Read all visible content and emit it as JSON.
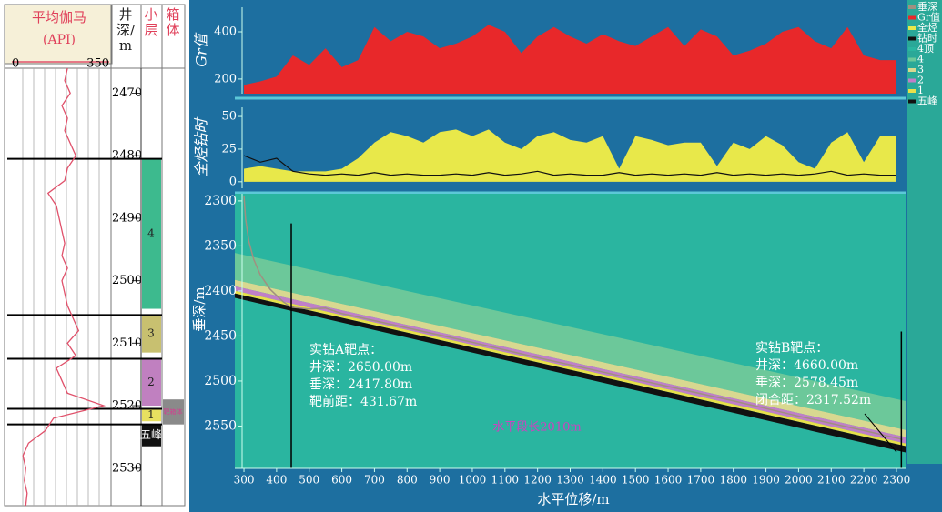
{
  "chart_data": [
    {
      "type": "well-log",
      "title": "平均伽马",
      "subtitle": "(API)",
      "depth_label": "井深/m",
      "layer_label": "小层",
      "box_label": "箱体",
      "xlim": [
        0,
        350
      ],
      "xticks": [
        0,
        350
      ],
      "ylim": [
        2466,
        2536
      ],
      "yticks": [
        2470,
        2480,
        2490,
        2500,
        2510,
        2520,
        2530
      ],
      "depth": [
        2466,
        2468,
        2470,
        2472,
        2474,
        2476,
        2478,
        2480,
        2482,
        2484,
        2486,
        2488,
        2490,
        2492,
        2494,
        2496,
        2498,
        2500,
        2502,
        2504,
        2506,
        2508,
        2510,
        2512,
        2514,
        2516,
        2518,
        2520,
        2522,
        2524,
        2526,
        2528,
        2530,
        2532,
        2534,
        2536
      ],
      "values": [
        200,
        190,
        210,
        180,
        200,
        190,
        210,
        230,
        200,
        190,
        130,
        160,
        170,
        180,
        190,
        180,
        200,
        180,
        190,
        200,
        220,
        240,
        200,
        230,
        160,
        180,
        200,
        330,
        150,
        120,
        60,
        40,
        50,
        45,
        55,
        50
      ],
      "color": "#e0506a",
      "layers": [
        {
          "name": "4",
          "color": "#3dba8e",
          "top": 2480.5,
          "bottom": 2504.5
        },
        {
          "name": "3",
          "color": "#c8c070",
          "top": 2505.5,
          "bottom": 2511.5
        },
        {
          "name": "2",
          "color": "#c080c0",
          "top": 2512.5,
          "bottom": 2520
        },
        {
          "name": "1",
          "color": "#e8e060",
          "top": 2520.5,
          "bottom": 2522.5
        },
        {
          "name": "五峰",
          "color": "#111111",
          "top": 2523,
          "bottom": 2526.5
        }
      ],
      "box": {
        "name": "靶箱体",
        "color": "#8a8a8a",
        "top": 2519,
        "bottom": 2523
      }
    },
    {
      "type": "area",
      "ylabel": "Gr值",
      "x": [
        300,
        350,
        400,
        450,
        500,
        550,
        600,
        650,
        700,
        750,
        800,
        850,
        900,
        950,
        1000,
        1050,
        1100,
        1150,
        1200,
        1250,
        1300,
        1350,
        1400,
        1450,
        1500,
        1550,
        1600,
        1650,
        1700,
        1750,
        1800,
        1850,
        1900,
        1950,
        2000,
        2050,
        2100,
        2150,
        2200,
        2250,
        2300
      ],
      "series": [
        {
          "name": "Gr值",
          "color": "#e8282a",
          "values": [
            175,
            190,
            210,
            300,
            260,
            330,
            250,
            280,
            420,
            360,
            400,
            380,
            330,
            350,
            380,
            430,
            400,
            310,
            380,
            420,
            380,
            350,
            390,
            360,
            340,
            380,
            420,
            340,
            410,
            380,
            300,
            320,
            350,
            400,
            420,
            360,
            330,
            420,
            300,
            280,
            280
          ]
        }
      ],
      "ylim": [
        138,
        504
      ],
      "yticks": [
        200,
        400
      ]
    },
    {
      "type": "area",
      "ylabel": "全烃钻时",
      "x": [
        300,
        350,
        400,
        450,
        500,
        550,
        600,
        650,
        700,
        750,
        800,
        850,
        900,
        950,
        1000,
        1050,
        1100,
        1150,
        1200,
        1250,
        1300,
        1350,
        1400,
        1450,
        1500,
        1550,
        1600,
        1650,
        1700,
        1750,
        1800,
        1850,
        1900,
        1950,
        2000,
        2050,
        2100,
        2150,
        2200,
        2250,
        2300
      ],
      "series": [
        {
          "name": "全烃",
          "color": "#e8e84a",
          "values": [
            10,
            12,
            10,
            8,
            8,
            8,
            10,
            18,
            30,
            38,
            35,
            30,
            38,
            40,
            35,
            40,
            30,
            25,
            35,
            38,
            32,
            30,
            35,
            10,
            35,
            32,
            28,
            30,
            30,
            12,
            30,
            25,
            35,
            28,
            15,
            10,
            30,
            38,
            15,
            35,
            35
          ]
        },
        {
          "name": "钻时",
          "color": "#111111",
          "mark": "line",
          "values": [
            20,
            15,
            18,
            8,
            6,
            5,
            6,
            5,
            7,
            5,
            6,
            5,
            5,
            6,
            5,
            7,
            5,
            6,
            8,
            5,
            6,
            5,
            5,
            7,
            5,
            6,
            5,
            6,
            5,
            7,
            5,
            6,
            5,
            6,
            5,
            6,
            8,
            5,
            6,
            5,
            5
          ]
        }
      ],
      "ylim": [
        -5,
        57
      ],
      "yticks": [
        0,
        25,
        50
      ]
    },
    {
      "type": "section",
      "xlabel": "水平位移/m",
      "ylabel": "垂深/m",
      "xlim": [
        272,
        2328
      ],
      "xticks": [
        300,
        400,
        500,
        600,
        700,
        800,
        900,
        1000,
        1100,
        1200,
        1300,
        1400,
        1500,
        1600,
        1700,
        1800,
        1900,
        2000,
        2100,
        2200,
        2300
      ],
      "ylim": [
        2292,
        2597
      ],
      "yticks": [
        2300,
        2350,
        2400,
        2450,
        2500,
        2550
      ],
      "inverted": true,
      "trajectory": {
        "name": "垂深",
        "color": "#a09080",
        "x": [
          300,
          305,
          315,
          330,
          350,
          380,
          420,
          445,
          500,
          550,
          600,
          800,
          1000,
          1200,
          1400,
          1600,
          1800,
          2000,
          2200,
          2320
        ],
        "values": [
          2294,
          2320,
          2345,
          2365,
          2382,
          2398,
          2412,
          2418,
          2420,
          2419,
          2425,
          2441,
          2457,
          2474,
          2490,
          2506,
          2522,
          2539,
          2555,
          2565
        ]
      },
      "layer_x": [
        300,
        2300
      ],
      "layers": [
        {
          "name": "4顶",
          "color": "#2ab5a0"
        },
        {
          "name": "4",
          "color": "#6cc89a",
          "top": [
            2360,
            2520
          ]
        },
        {
          "name": "3",
          "color": "#d8d890",
          "top": [
            2390,
            2552
          ]
        },
        {
          "name": "2",
          "color": "#c07fc8",
          "top": [
            2397,
            2560
          ]
        },
        {
          "name": "1",
          "color": "#e8e04a",
          "top": [
            2402,
            2567
          ]
        },
        {
          "name": "五峰",
          "color": "#111111",
          "top": [
            2405,
            2570
          ],
          "bottom": [
            2410,
            2577
          ]
        }
      ],
      "targets": [
        {
          "x": 445,
          "span": [
            2325,
            2597
          ]
        },
        {
          "x": 2315,
          "span": [
            2445,
            2597
          ]
        }
      ],
      "annotations": [
        {
          "lines": [
            "实钻A靶点：",
            "井深：2650.00m",
            "垂深：2417.80m",
            "靶前距：431.67m"
          ]
        },
        {
          "lines": [
            "实钻B靶点：",
            "井深：4660.00m",
            "垂深：2578.45m",
            "闭合距：2317.52m"
          ]
        }
      ],
      "segment_label": "水平段长2010m"
    }
  ]
}
